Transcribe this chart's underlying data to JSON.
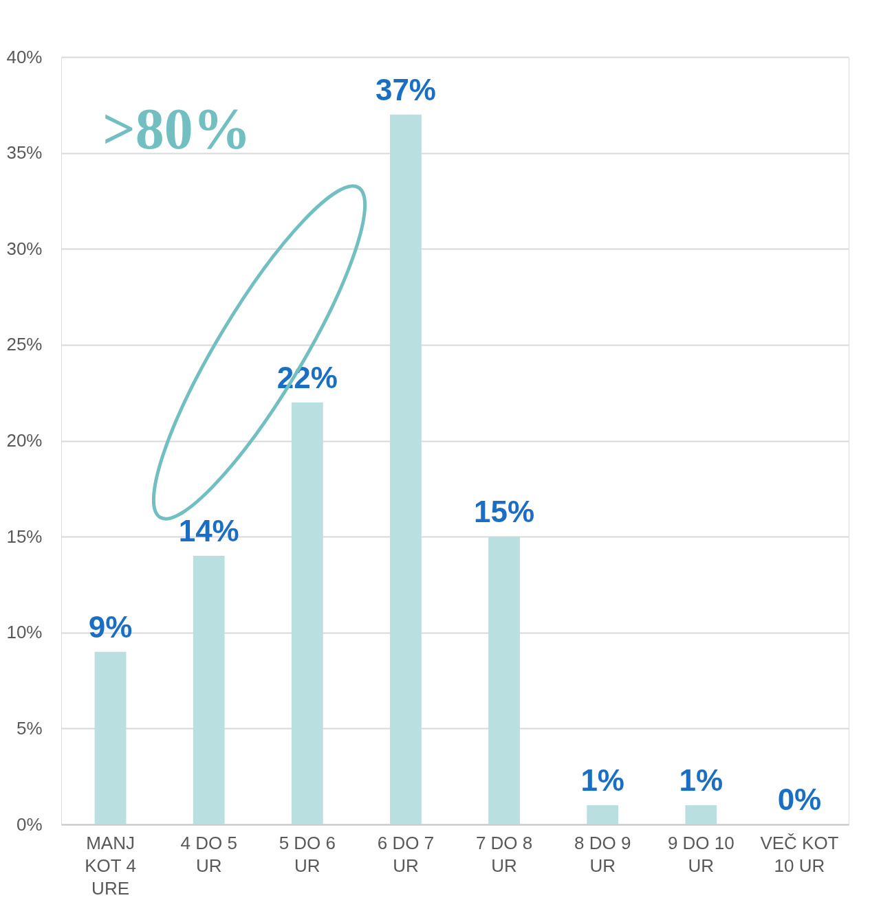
{
  "chart_data": {
    "type": "bar",
    "categories": [
      "MANJ KOT 4 URE",
      "4 DO 5 UR",
      "5 DO 6 UR",
      "6 DO 7 UR",
      "7 DO 8 UR",
      "8 DO 9 UR",
      "9 DO 10 UR",
      "VEČ KOT 10 UR"
    ],
    "values": [
      9,
      14,
      22,
      37,
      15,
      1,
      1,
      0
    ],
    "color": "#b9dfe1",
    "ylim": [
      0,
      40
    ],
    "yticks": [
      {
        "value": 0,
        "label": "0%"
      },
      {
        "value": 5,
        "label": "5%"
      },
      {
        "value": 10,
        "label": "10%"
      },
      {
        "value": 15,
        "label": "15%"
      },
      {
        "value": 20,
        "label": "20%"
      },
      {
        "value": 25,
        "label": "25%"
      },
      {
        "value": 30,
        "label": "30%"
      },
      {
        "value": 35,
        "label": "35%"
      },
      {
        "value": 40,
        "label": "40%"
      }
    ],
    "value_labels": [
      "9%",
      "14%",
      "22%",
      "37%",
      "15%",
      "1%",
      "1%",
      "0%"
    ],
    "grid": "y",
    "annotations": [
      ">80%"
    ]
  }
}
